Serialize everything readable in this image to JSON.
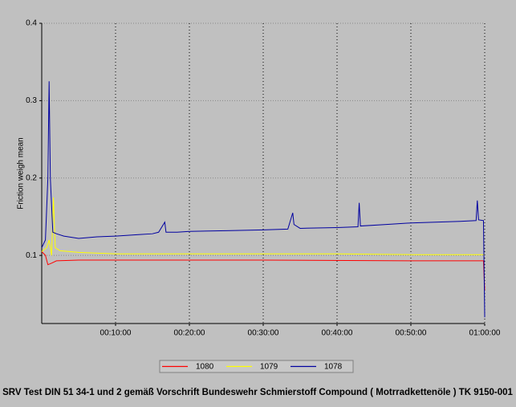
{
  "chart_data": {
    "type": "line",
    "title": "SRV Test DIN 51 34-1 und 2 gemäß Vorschrift Bundeswehr Schmierstoff Compound ( Motrradkettenöle ) TK 9150-001",
    "y_label": "Friction  weigh mean",
    "xlim": [
      0,
      3600
    ],
    "xticks": [
      {
        "value": 600,
        "label": "00:10:00"
      },
      {
        "value": 1200,
        "label": "00:20:00"
      },
      {
        "value": 1800,
        "label": "00:30:00"
      },
      {
        "value": 2400,
        "label": "00:40:00"
      },
      {
        "value": 3000,
        "label": "00:50:00"
      },
      {
        "value": 3600,
        "label": "01:00:00"
      }
    ],
    "ylim": [
      0.012,
      0.4
    ],
    "yticks": [
      0.1,
      0.2,
      0.3,
      0.4
    ],
    "grid": true,
    "series": [
      {
        "name": "1080",
        "color": "#ff0000",
        "x": [
          0,
          30,
          50,
          80,
          120,
          300,
          600,
          1800,
          3000,
          3590,
          3600
        ],
        "values": [
          0.105,
          0.1,
          0.088,
          0.09,
          0.093,
          0.094,
          0.094,
          0.094,
          0.093,
          0.093,
          0.055
        ]
      },
      {
        "name": "1079",
        "color": "#ffff00",
        "x": [
          0,
          40,
          60,
          80,
          95,
          110,
          150,
          300,
          600,
          1200,
          1800,
          2400,
          3000,
          3600
        ],
        "values": [
          0.105,
          0.11,
          0.12,
          0.1,
          0.175,
          0.11,
          0.106,
          0.104,
          0.102,
          0.102,
          0.102,
          0.102,
          0.101,
          0.101
        ]
      },
      {
        "name": "1078",
        "color": "#0000a0",
        "x": [
          0,
          30,
          50,
          60,
          70,
          90,
          120,
          180,
          300,
          450,
          600,
          700,
          800,
          900,
          950,
          1000,
          1010,
          1100,
          1200,
          1500,
          1800,
          2000,
          2040,
          2050,
          2100,
          2400,
          2570,
          2580,
          2590,
          2800,
          3000,
          3200,
          3400,
          3530,
          3540,
          3550,
          3590,
          3600
        ],
        "values": [
          0.11,
          0.12,
          0.2,
          0.325,
          0.2,
          0.13,
          0.128,
          0.125,
          0.122,
          0.124,
          0.125,
          0.126,
          0.127,
          0.128,
          0.13,
          0.143,
          0.13,
          0.13,
          0.131,
          0.132,
          0.133,
          0.134,
          0.155,
          0.14,
          0.135,
          0.136,
          0.137,
          0.168,
          0.138,
          0.14,
          0.142,
          0.143,
          0.144,
          0.145,
          0.171,
          0.146,
          0.145,
          0.02
        ]
      }
    ]
  }
}
